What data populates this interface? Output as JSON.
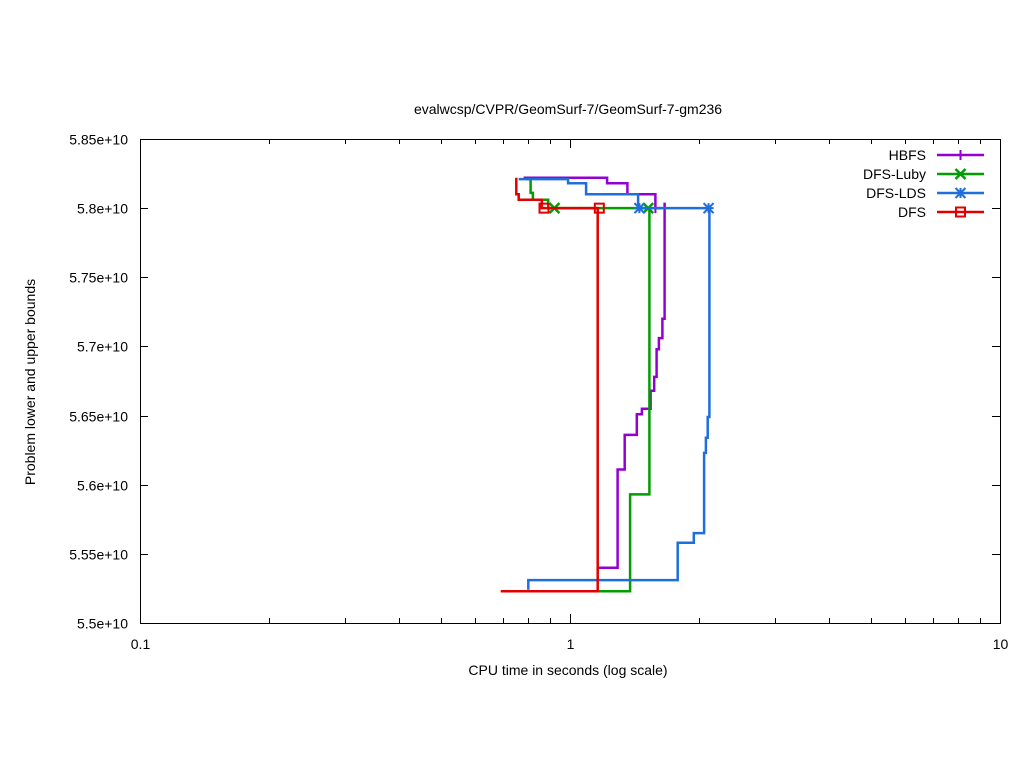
{
  "chart_data": {
    "type": "line",
    "title": "evalwcsp/CVPR/GeomSurf-7/GeomSurf-7-gm236",
    "xlabel": "CPU time in seconds (log scale)",
    "ylabel": "Problem lower and upper bounds",
    "xscale": "log",
    "xlim": [
      0.1,
      10
    ],
    "ylim": [
      55000000000,
      58500000000
    ],
    "xticks": [
      {
        "value": 0.1,
        "label": "0.1"
      },
      {
        "value": 1,
        "label": "1"
      },
      {
        "value": 10,
        "label": "10"
      }
    ],
    "yticks": [
      {
        "value": 55000000000,
        "label": "5.5e+10"
      },
      {
        "value": 55500000000,
        "label": "5.55e+10"
      },
      {
        "value": 56000000000,
        "label": "5.6e+10"
      },
      {
        "value": 56500000000,
        "label": "5.65e+10"
      },
      {
        "value": 57000000000,
        "label": "5.7e+10"
      },
      {
        "value": 57500000000,
        "label": "5.75e+10"
      },
      {
        "value": 58000000000,
        "label": "5.8e+10"
      },
      {
        "value": 58500000000,
        "label": "5.85e+10"
      }
    ],
    "grid": false,
    "legend_position": "top-right",
    "series": [
      {
        "name": "HBFS",
        "color": "#9400d3",
        "marker": "plus",
        "upper": [
          [
            0.78,
            58220000000
          ],
          [
            1.22,
            58220000000
          ],
          [
            1.22,
            58180000000
          ],
          [
            1.36,
            58180000000
          ],
          [
            1.36,
            58100000000
          ],
          [
            1.58,
            58100000000
          ],
          [
            1.58,
            58000000000
          ],
          [
            1.63,
            58000000000
          ]
        ],
        "lower": [
          [
            1.16,
            55400000000
          ],
          [
            1.29,
            55400000000
          ],
          [
            1.29,
            56110000000
          ],
          [
            1.34,
            56110000000
          ],
          [
            1.34,
            56360000000
          ],
          [
            1.43,
            56360000000
          ],
          [
            1.43,
            56510000000
          ],
          [
            1.47,
            56510000000
          ],
          [
            1.47,
            56550000000
          ],
          [
            1.54,
            56550000000
          ],
          [
            1.54,
            56680000000
          ],
          [
            1.57,
            56680000000
          ],
          [
            1.57,
            56780000000
          ],
          [
            1.59,
            56780000000
          ],
          [
            1.59,
            56980000000
          ],
          [
            1.61,
            56980000000
          ],
          [
            1.61,
            57060000000
          ],
          [
            1.64,
            57060000000
          ],
          [
            1.64,
            57200000000
          ],
          [
            1.66,
            57200000000
          ],
          [
            1.66,
            58040000000
          ]
        ],
        "markers": [
          [
            1.58,
            58000000000
          ]
        ]
      },
      {
        "name": "DFS-Luby",
        "color": "#009e00",
        "marker": "cross",
        "upper": [
          [
            0.79,
            58210000000
          ],
          [
            0.81,
            58210000000
          ],
          [
            0.81,
            58110000000
          ],
          [
            0.82,
            58110000000
          ],
          [
            0.82,
            58060000000
          ],
          [
            0.89,
            58060000000
          ],
          [
            0.89,
            58000000000
          ],
          [
            1.52,
            58000000000
          ]
        ],
        "lower": [
          [
            1.16,
            55230000000
          ],
          [
            1.38,
            55230000000
          ],
          [
            1.38,
            55930000000
          ],
          [
            1.53,
            55930000000
          ],
          [
            1.53,
            58000000000
          ]
        ],
        "markers": [
          [
            0.92,
            58000000000
          ],
          [
            1.52,
            58000000000
          ]
        ]
      },
      {
        "name": "DFS-LDS",
        "color": "#1e6fdc",
        "marker": "star",
        "upper": [
          [
            0.76,
            58210000000
          ],
          [
            0.99,
            58210000000
          ],
          [
            0.99,
            58180000000
          ],
          [
            1.09,
            58180000000
          ],
          [
            1.09,
            58100000000
          ],
          [
            1.44,
            58100000000
          ],
          [
            1.44,
            58000000000
          ],
          [
            2.1,
            58000000000
          ]
        ],
        "lower": [
          [
            0.8,
            55240000000
          ],
          [
            0.8,
            55310000000
          ],
          [
            1.78,
            55310000000
          ],
          [
            1.78,
            55580000000
          ],
          [
            1.94,
            55580000000
          ],
          [
            1.94,
            55650000000
          ],
          [
            2.05,
            55650000000
          ],
          [
            2.05,
            56230000000
          ],
          [
            2.07,
            56230000000
          ],
          [
            2.07,
            56340000000
          ],
          [
            2.09,
            56340000000
          ],
          [
            2.09,
            56490000000
          ],
          [
            2.11,
            56490000000
          ],
          [
            2.11,
            58000000000
          ]
        ],
        "markers": [
          [
            1.45,
            58000000000
          ],
          [
            2.1,
            58000000000
          ]
        ]
      },
      {
        "name": "DFS",
        "color": "#e00000",
        "marker": "square",
        "upper": [
          [
            0.75,
            58220000000
          ],
          [
            0.75,
            58100000000
          ],
          [
            0.76,
            58100000000
          ],
          [
            0.76,
            58060000000
          ],
          [
            0.86,
            58060000000
          ],
          [
            0.86,
            58000000000
          ],
          [
            1.17,
            58000000000
          ]
        ],
        "lower": [
          [
            0.69,
            55230000000
          ],
          [
            1.16,
            55230000000
          ],
          [
            1.16,
            58000000000
          ]
        ],
        "markers": [
          [
            0.87,
            58000000000
          ],
          [
            1.17,
            58000000000
          ]
        ]
      }
    ]
  }
}
